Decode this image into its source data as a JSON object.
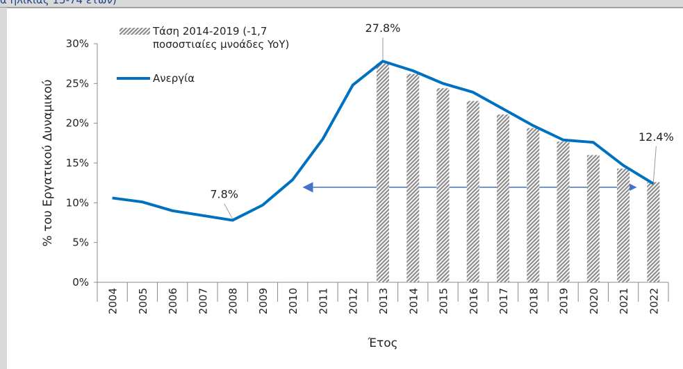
{
  "page_title": "α ηλικίας 15-74 ετών)",
  "chart_data": {
    "type": "bar-line",
    "xlabel": "Έτος",
    "ylabel": "% του Εργατικού Δυναμικού",
    "categories": [
      "2004",
      "2005",
      "2006",
      "2007",
      "2008",
      "2009",
      "2010",
      "2011",
      "2012",
      "2013",
      "2014",
      "2015",
      "2016",
      "2017",
      "2018",
      "2019",
      "2020",
      "2021",
      "2022"
    ],
    "ylim": [
      0,
      30
    ],
    "yticks": [
      {
        "value": 0,
        "label": "0%"
      },
      {
        "value": 5,
        "label": "5%"
      },
      {
        "value": 10,
        "label": "10%"
      },
      {
        "value": 15,
        "label": "15%"
      },
      {
        "value": 20,
        "label": "20%"
      },
      {
        "value": 25,
        "label": "25%"
      },
      {
        "value": 30,
        "label": "30%"
      }
    ],
    "series": [
      {
        "name": "Τάση 2014-2019 (-1,7\nποσοστιαίες μνοάδες YoY)",
        "kind": "bar",
        "color": "#8c8c8c",
        "values": [
          null,
          null,
          null,
          null,
          null,
          null,
          null,
          null,
          null,
          27.5,
          26.2,
          24.4,
          22.8,
          21.1,
          19.4,
          17.7,
          16.0,
          14.3,
          12.6
        ]
      },
      {
        "name": "Ανεργία",
        "kind": "line",
        "color": "#0070c0",
        "values": [
          10.6,
          10.1,
          9.0,
          8.4,
          7.8,
          9.7,
          12.9,
          18.0,
          24.8,
          27.8,
          26.6,
          25.0,
          23.9,
          21.8,
          19.7,
          17.9,
          17.6,
          14.7,
          12.4
        ],
        "value_labels": [
          null,
          null,
          null,
          null,
          "7.8%",
          null,
          null,
          null,
          null,
          "27.8%",
          null,
          null,
          null,
          null,
          null,
          null,
          null,
          null,
          "12.4%"
        ]
      }
    ]
  }
}
